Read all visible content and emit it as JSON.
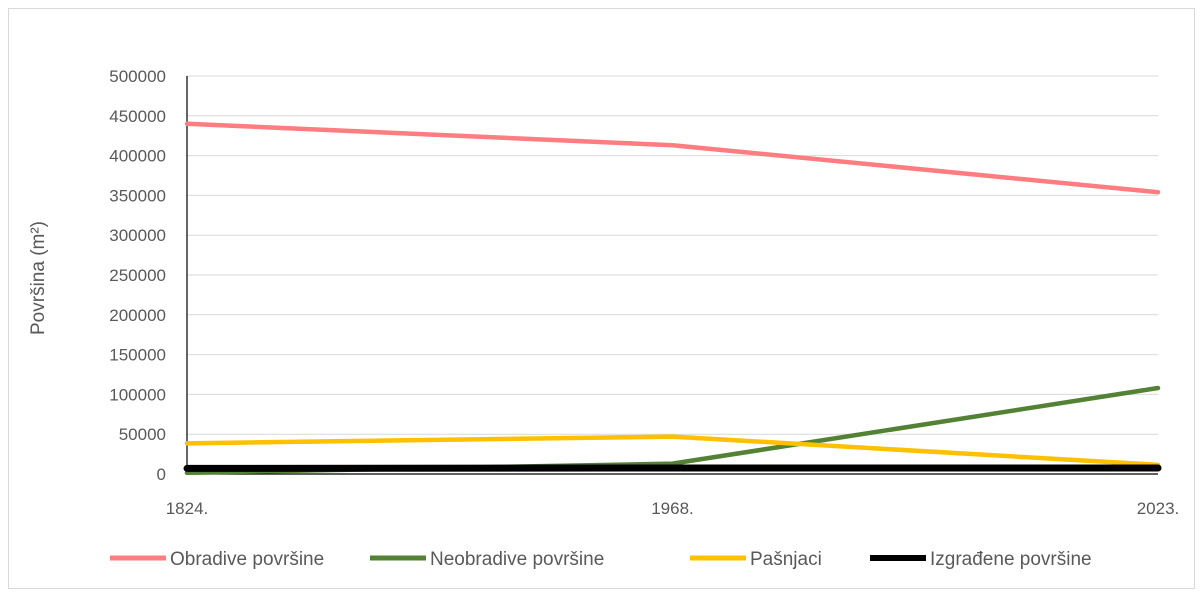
{
  "chart_data": {
    "type": "line",
    "title": "",
    "xlabel": "",
    "ylabel": "Površina (m²)",
    "categories": [
      "1824.",
      "1968.",
      "2023."
    ],
    "ylim": [
      0,
      500000
    ],
    "yticks": [
      0,
      50000,
      100000,
      150000,
      200000,
      250000,
      300000,
      350000,
      400000,
      450000,
      500000
    ],
    "grid": "horizontal",
    "legend_position": "bottom",
    "series": [
      {
        "name": "Obradive površine",
        "color": "#ff7c80",
        "values": [
          440000,
          413000,
          354000
        ]
      },
      {
        "name": "Neobradive površine",
        "color": "#548235",
        "values": [
          1500,
          13000,
          108000
        ]
      },
      {
        "name": "Pašnjaci",
        "color": "#ffc000",
        "values": [
          38500,
          47000,
          11500
        ]
      },
      {
        "name": "Izgrađene površine",
        "color": "#000000",
        "values": [
          7000,
          7500,
          7500
        ]
      }
    ]
  }
}
